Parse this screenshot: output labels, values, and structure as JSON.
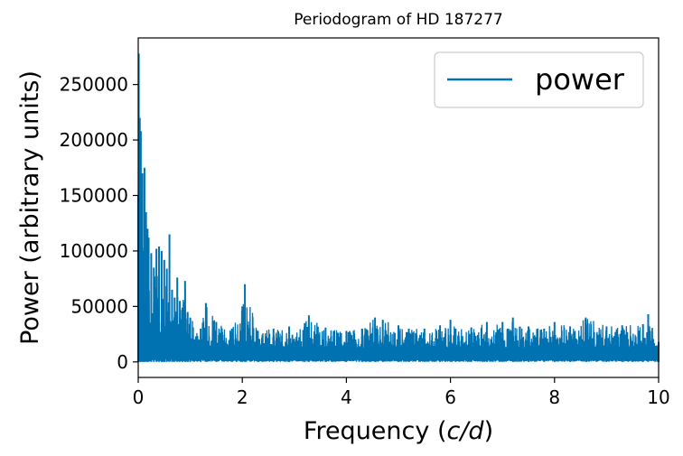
{
  "chart_data": {
    "type": "line",
    "title": "Periodogram of HD 187277",
    "xlabel_text": "Frequency (",
    "xlabel_italic": "c/d",
    "xlabel_close": ")",
    "ylabel": "Power (arbitrary units)",
    "xlim": [
      0,
      10
    ],
    "ylim": [
      -14000,
      292000
    ],
    "xticks": [
      0,
      2,
      4,
      6,
      8,
      10
    ],
    "xtick_labels": [
      "0",
      "2",
      "4",
      "6",
      "8",
      "10"
    ],
    "yticks": [
      0,
      50000,
      100000,
      150000,
      200000,
      250000
    ],
    "ytick_labels": [
      "0",
      "50000",
      "100000",
      "150000",
      "200000",
      "250000"
    ],
    "grid": false,
    "legend_position": "top-right",
    "series": [
      {
        "name": "power",
        "color": "#0072b2",
        "x": [
          0.0,
          0.01,
          0.03,
          0.05,
          0.08,
          0.1,
          0.12,
          0.15,
          0.18,
          0.2,
          0.25,
          0.3,
          0.35,
          0.4,
          0.45,
          0.5,
          0.55,
          0.6,
          0.65,
          0.7,
          0.75,
          0.8,
          0.85,
          0.9,
          0.95,
          1.0,
          1.2,
          1.3,
          1.5,
          1.8,
          2.0,
          2.05,
          2.3,
          2.6,
          2.9,
          3.2,
          3.28,
          3.6,
          4.0,
          4.3,
          4.55,
          4.7,
          5.0,
          5.2,
          5.5,
          5.8,
          6.0,
          6.1,
          6.4,
          6.7,
          7.0,
          7.2,
          7.5,
          7.8,
          8.0,
          8.3,
          8.6,
          9.0,
          9.3,
          9.7,
          9.8,
          10.0
        ],
        "peak": [
          150000,
          278000,
          220000,
          208000,
          170000,
          100000,
          175000,
          135000,
          120000,
          112000,
          98000,
          85000,
          102000,
          104000,
          100000,
          92000,
          84000,
          115000,
          65000,
          58000,
          76000,
          55000,
          49000,
          73000,
          45000,
          40000,
          30000,
          53000,
          36000,
          30000,
          50000,
          70000,
          28000,
          30000,
          32000,
          35000,
          42000,
          31000,
          28000,
          30000,
          40000,
          38000,
          33000,
          30000,
          30000,
          33000,
          38000,
          30000,
          31000,
          36000,
          36000,
          40000,
          32000,
          30000,
          36000,
          32000,
          40000,
          32000,
          33000,
          34000,
          43000,
          18000
        ],
        "floor": [
          90000,
          80000,
          60000,
          50000,
          45000,
          40000,
          38000,
          35000,
          32000,
          30000,
          28000,
          26000,
          25000,
          24000,
          23000,
          22000,
          21000,
          20000,
          19000,
          18500,
          18000,
          17500,
          17000,
          16500,
          16000,
          15500,
          15000,
          14500,
          14000,
          13500,
          13000,
          13000,
          13000,
          13000,
          13000,
          13000,
          13000,
          13000,
          13000,
          13000,
          13000,
          13000,
          13000,
          13000,
          13000,
          13000,
          13000,
          13000,
          13000,
          13000,
          13000,
          13000,
          13000,
          13000,
          13000,
          13000,
          13000,
          13000,
          13000,
          13000,
          13000,
          13000
        ]
      }
    ]
  }
}
